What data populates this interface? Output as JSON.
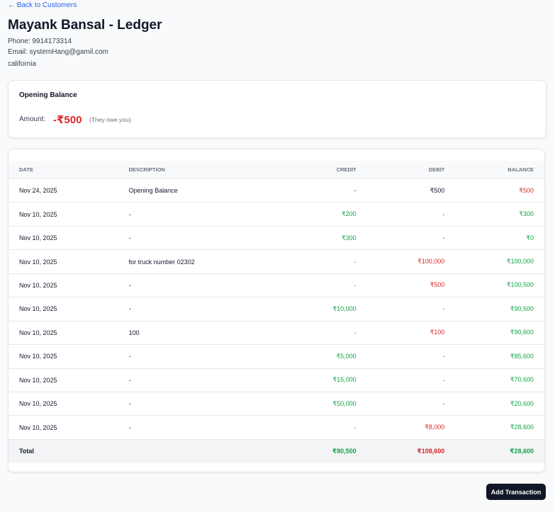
{
  "header": {
    "back_link": "← Back to Customers",
    "title": "Mayank Bansal - Ledger",
    "phone": "Phone: 9914173314",
    "email": "Email: systemHang@gamil.com",
    "location": "california"
  },
  "opening_balance": {
    "title": "Opening Balance",
    "label": "Amount:",
    "amount": "-₹500",
    "note": "(They owe you)"
  },
  "table": {
    "columns": [
      "DATE",
      "DESCRIPTION",
      "CREDIT",
      "DEBIT",
      "BALANCE"
    ],
    "rows": [
      [
        "Nov 24, 2025",
        "Opening Balance",
        "-",
        "₹500",
        "₹500"
      ],
      [
        "Nov 10, 2025",
        "-",
        "₹200",
        "-",
        "₹300"
      ],
      [
        "Nov 10, 2025",
        "-",
        "₹300",
        "-",
        "₹0"
      ],
      [
        "Nov 10, 2025",
        "for truck number 02302",
        "-",
        "₹100,000",
        "₹100,000"
      ],
      [
        "Nov 10, 2025",
        "-",
        "-",
        "₹500",
        "₹100,500"
      ],
      [
        "Nov 10, 2025",
        "-",
        "₹10,000",
        "-",
        "₹90,500"
      ],
      [
        "Nov 10, 2025",
        "100",
        "-",
        "₹100",
        "₹90,600"
      ],
      [
        "Nov 10, 2025",
        "-",
        "₹5,000",
        "-",
        "₹85,600"
      ],
      [
        "Nov 10, 2025",
        "-",
        "₹15,000",
        "-",
        "₹70,600"
      ],
      [
        "Nov 10, 2025",
        "-",
        "₹50,000",
        "-",
        "₹20,600"
      ],
      [
        "Nov 10, 2025",
        "-",
        "-",
        "₹8,000",
        "₹28,600"
      ]
    ],
    "total": [
      "Total",
      "",
      "₹80,500",
      "₹108,600",
      "₹28,600"
    ]
  },
  "button": "Add Transaction"
}
